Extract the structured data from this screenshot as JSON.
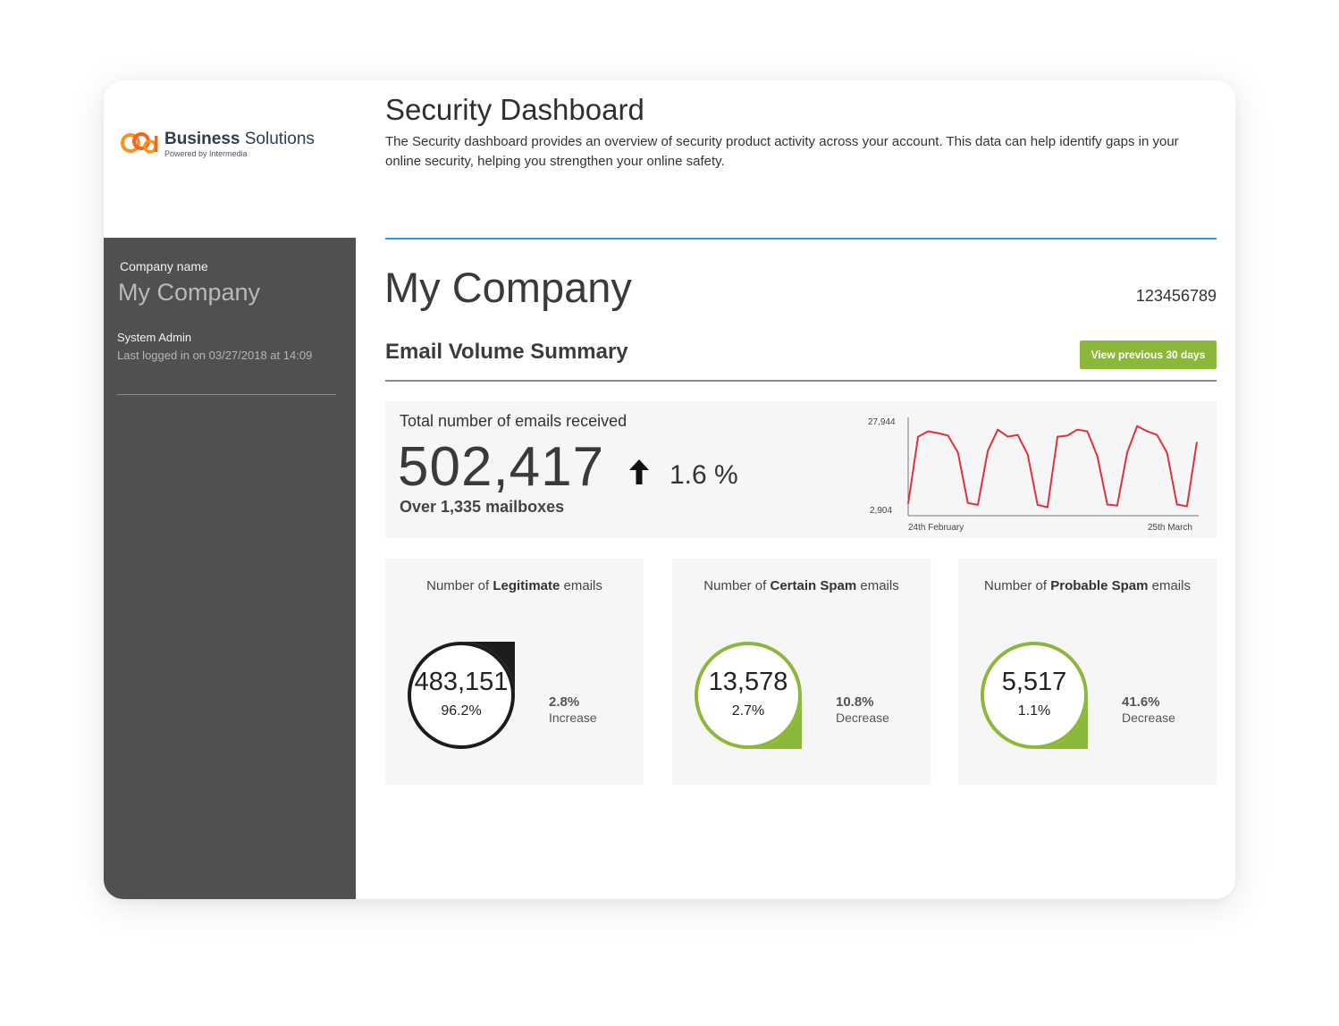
{
  "brand": {
    "name_bold": "Business",
    "name_rest": " Solutions",
    "tagline": "Powered by Intermedia"
  },
  "header": {
    "title": "Security Dashboard",
    "description": "The Security dashboard provides an overview of security product activity across your account. This data can help identify gaps in your online security, helping you strengthen your online safety."
  },
  "sidebar": {
    "company_label": "Company name",
    "company_name": "My Company",
    "role": "System Admin",
    "last_login": "Last logged in on 03/27/2018 at 14:09"
  },
  "main": {
    "company_title": "My Company",
    "account_id": "123456789",
    "section_title": "Email Volume Summary",
    "view_previous_label": "View previous 30 days"
  },
  "total": {
    "label": "Total number of emails received",
    "value": "502,417",
    "sub": "Over 1,335 mailboxes",
    "change": "1.6 %",
    "arrow_icon": "arrow-up-icon"
  },
  "chart_data": {
    "type": "line",
    "x_start_label": "24th February",
    "x_end_label": "25th March",
    "ylim": [
      2904,
      27944
    ],
    "y_tick_labels": [
      "27,944",
      "2,904"
    ],
    "values": [
      4500,
      23500,
      25000,
      24500,
      23800,
      19000,
      4700,
      4200,
      19500,
      25500,
      23500,
      24000,
      18500,
      4200,
      3500,
      23500,
      23800,
      25500,
      25000,
      18000,
      4300,
      4000,
      19000,
      26500,
      25000,
      24000,
      19000,
      4300,
      3800,
      22000
    ],
    "color": "#e0313c"
  },
  "stats": [
    {
      "title_pre": "Number of ",
      "title_bold": "Legitimate",
      "title_post": " emails",
      "value": "483,151",
      "percent": "96.2%",
      "change": "2.8%",
      "direction": "Increase",
      "ring_color": "#1c1c1c",
      "share": 0.962
    },
    {
      "title_pre": "Number of ",
      "title_bold": "Certain Spam",
      "title_post": " emails",
      "value": "13,578",
      "percent": "2.7%",
      "change": "10.8%",
      "direction": "Decrease",
      "ring_color": "#8cb83a",
      "share": 0.027
    },
    {
      "title_pre": "Number of ",
      "title_bold": "Probable Spam",
      "title_post": " emails",
      "value": "5,517",
      "percent": "1.1%",
      "change": "41.6%",
      "direction": "Decrease",
      "ring_color": "#8cb83a",
      "share": 0.011
    }
  ]
}
